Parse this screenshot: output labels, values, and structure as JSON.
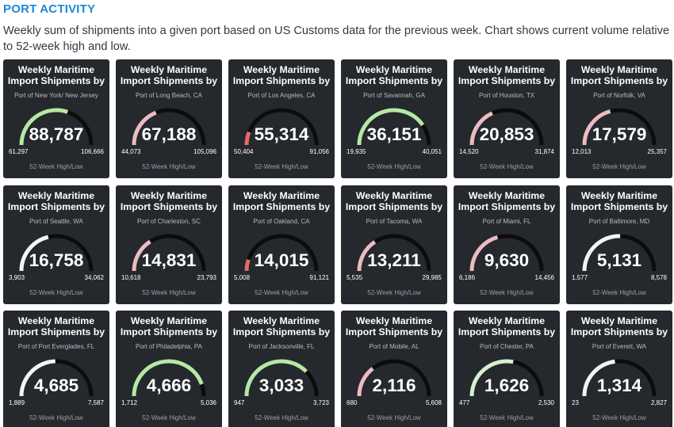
{
  "header": {
    "title": "PORT ACTIVITY",
    "subtitle": "Weekly sum of shipments into a given port based on US Customs data for the previous week. Chart shows current volume relative to 52-week high and low."
  },
  "colors": {
    "tile_bg": "#25282d",
    "track": "#0b0c0e",
    "green": "#b5e8a4",
    "pink": "#eebac1",
    "white": "#f4f4f4",
    "red": "#e36a6a"
  },
  "tiles": [
    {
      "title": "Weekly Maritime Import Shipments by",
      "port": "Port of New York/ New Jersey",
      "value": "88,787",
      "low": "61,297",
      "high": "106,666",
      "footer": "52-Week High/Low",
      "fraction": 0.605,
      "color": "#b5e8a4"
    },
    {
      "title": "Weekly Maritime Import Shipments by",
      "port": "Port of Long Beach, CA",
      "value": "67,188",
      "low": "44,073",
      "high": "105,096",
      "footer": "52-Week High/Low",
      "fraction": 0.379,
      "color": "#eebac1"
    },
    {
      "title": "Weekly Maritime Import Shipments by",
      "port": "Port of Los Angeles, CA",
      "value": "55,314",
      "low": "50,404",
      "high": "91,056",
      "footer": "52-Week High/Low",
      "fraction": 0.121,
      "color": "#e36a6a"
    },
    {
      "title": "Weekly Maritime Import Shipments by",
      "port": "Port of Savannah, GA",
      "value": "36,151",
      "low": "19,935",
      "high": "40,051",
      "footer": "52-Week High/Low",
      "fraction": 0.806,
      "color": "#b5e8a4"
    },
    {
      "title": "Weekly Maritime Import Shipments by",
      "port": "Port of Houston, TX",
      "value": "20,853",
      "low": "14,520",
      "high": "31,874",
      "footer": "52-Week High/Low",
      "fraction": 0.365,
      "color": "#eebac1"
    },
    {
      "title": "Weekly Maritime Import Shipments by",
      "port": "Port of Norfolk, VA",
      "value": "17,579",
      "low": "12,013",
      "high": "25,357",
      "footer": "52-Week High/Low",
      "fraction": 0.417,
      "color": "#eebac1"
    },
    {
      "title": "Weekly Maritime Import Shipments by",
      "port": "Port of Seattle, WA",
      "value": "16,758",
      "low": "3,903",
      "high": "34,062",
      "footer": "52-Week High/Low",
      "fraction": 0.426,
      "color": "#f4f4f4"
    },
    {
      "title": "Weekly Maritime Import Shipments by",
      "port": "Port of Charleston, SC",
      "value": "14,831",
      "low": "10,618",
      "high": "23,793",
      "footer": "52-Week High/Low",
      "fraction": 0.32,
      "color": "#eebac1"
    },
    {
      "title": "Weekly Maritime Import Shipments by",
      "port": "Port of Oakland, CA",
      "value": "14,015",
      "low": "5,008",
      "high": "91,121",
      "footer": "52-Week High/Low",
      "fraction": 0.105,
      "color": "#e36a6a"
    },
    {
      "title": "Weekly Maritime Import Shipments by",
      "port": "Port of Tacoma, WA",
      "value": "13,211",
      "low": "5,535",
      "high": "29,985",
      "footer": "52-Week High/Low",
      "fraction": 0.314,
      "color": "#eebac1"
    },
    {
      "title": "Weekly Maritime Import Shipments by",
      "port": "Port of Miami, FL",
      "value": "9,630",
      "low": "6,186",
      "high": "14,456",
      "footer": "52-Week High/Low",
      "fraction": 0.416,
      "color": "#eebac1"
    },
    {
      "title": "Weekly Maritime Import Shipments by",
      "port": "Port of Baltimore, MD",
      "value": "5,131",
      "low": "1,577",
      "high": "8,578",
      "footer": "52-Week High/Low",
      "fraction": 0.508,
      "color": "#f4f4f4"
    },
    {
      "title": "Weekly Maritime Import Shipments by",
      "port": "Port of Port Everglades, FL",
      "value": "4,685",
      "low": "1,889",
      "high": "7,587",
      "footer": "52-Week High/Low",
      "fraction": 0.491,
      "color": "#f4f4f4"
    },
    {
      "title": "Weekly Maritime Import Shipments by",
      "port": "Port of Philadelphia, PA",
      "value": "4,666",
      "low": "1,712",
      "high": "5,036",
      "footer": "52-Week High/Low",
      "fraction": 0.889,
      "color": "#b5e8a4"
    },
    {
      "title": "Weekly Maritime Import Shipments by",
      "port": "Port of Jacksonville, FL",
      "value": "3,033",
      "low": "947",
      "high": "3,723",
      "footer": "52-Week High/Low",
      "fraction": 0.751,
      "color": "#b5e8a4"
    },
    {
      "title": "Weekly Maritime Import Shipments by",
      "port": "Port of Mobile, AL",
      "value": "2,116",
      "low": "680",
      "high": "5,608",
      "footer": "52-Week High/Low",
      "fraction": 0.291,
      "color": "#eebac1"
    },
    {
      "title": "Weekly Maritime Import Shipments by",
      "port": "Port of Chester, PA",
      "value": "1,626",
      "low": "477",
      "high": "2,530",
      "footer": "52-Week High/Low",
      "fraction": 0.56,
      "color": "#d8efcf"
    },
    {
      "title": "Weekly Maritime Import Shipments by",
      "port": "Port of Everett, WA",
      "value": "1,314",
      "low": "23",
      "high": "2,827",
      "footer": "52-Week High/Low",
      "fraction": 0.46,
      "color": "#f4f4f4"
    }
  ]
}
